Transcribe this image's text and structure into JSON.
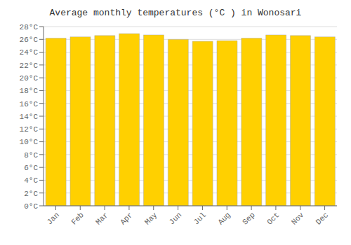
{
  "chart_data": {
    "type": "bar",
    "title": "Average monthly temperatures (°C ) in Wonosari",
    "categories": [
      "Jan",
      "Feb",
      "Mar",
      "Apr",
      "May",
      "Jun",
      "Jul",
      "Aug",
      "Sep",
      "Oct",
      "Nov",
      "Dec"
    ],
    "values": [
      26.2,
      26.4,
      26.6,
      26.9,
      26.7,
      26.0,
      25.7,
      25.8,
      26.2,
      26.7,
      26.6,
      26.4
    ],
    "color": "#FFD000",
    "ylim": [
      0,
      28
    ],
    "yticks": [
      {
        "value": 0,
        "label": "0°C"
      },
      {
        "value": 2,
        "label": "2°C"
      },
      {
        "value": 4,
        "label": "4°C"
      },
      {
        "value": 6,
        "label": "6°C"
      },
      {
        "value": 8,
        "label": "8°C"
      },
      {
        "value": 10,
        "label": "10°C"
      },
      {
        "value": 12,
        "label": "12°C"
      },
      {
        "value": 14,
        "label": "14°C"
      },
      {
        "value": 16,
        "label": "16°C"
      },
      {
        "value": 18,
        "label": "18°C"
      },
      {
        "value": 20,
        "label": "20°C"
      },
      {
        "value": 22,
        "label": "22°C"
      },
      {
        "value": 24,
        "label": "24°C"
      },
      {
        "value": 26,
        "label": "26°C"
      },
      {
        "value": 28,
        "label": "28°C"
      }
    ],
    "grid": true
  }
}
